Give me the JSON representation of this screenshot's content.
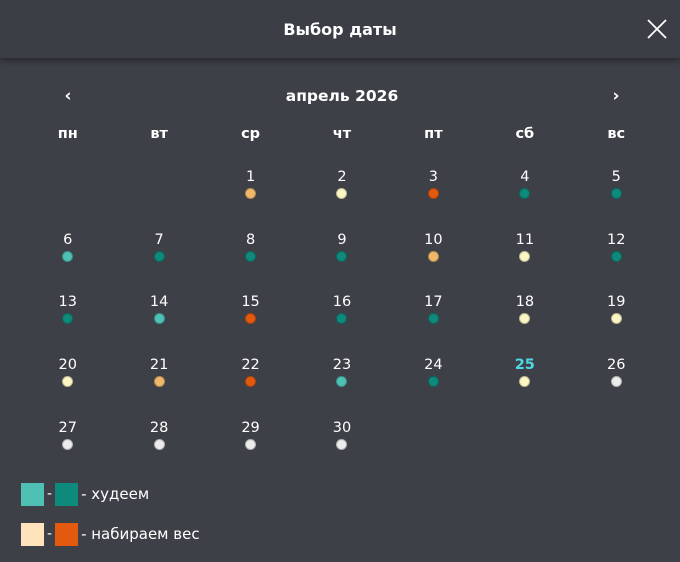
{
  "header": {
    "title": "Выбор даты",
    "close_icon": "close-icon"
  },
  "nav": {
    "prev": "‹",
    "next": "›",
    "month": "апрель 2026"
  },
  "weekdays": [
    "пн",
    "вт",
    "ср",
    "чт",
    "пт",
    "сб",
    "вс"
  ],
  "status_colors": {
    "lose_light": "#4fc0b4",
    "lose_dark": "#0e8a7c",
    "gain_light": "#ffe3bc",
    "gain_dark": "#e35a0f",
    "gain_mid": "#f0b86b",
    "neutral_yellow": "#fbf6c4",
    "none": "#ececec"
  },
  "today": 25,
  "start_offset": 2,
  "days": [
    {
      "d": "1",
      "c": "gain_mid"
    },
    {
      "d": "2",
      "c": "neutral_yellow"
    },
    {
      "d": "3",
      "c": "gain_dark"
    },
    {
      "d": "4",
      "c": "lose_dark"
    },
    {
      "d": "5",
      "c": "lose_dark"
    },
    {
      "d": "6",
      "c": "lose_light"
    },
    {
      "d": "7",
      "c": "lose_dark"
    },
    {
      "d": "8",
      "c": "lose_dark"
    },
    {
      "d": "9",
      "c": "lose_dark"
    },
    {
      "d": "10",
      "c": "gain_mid"
    },
    {
      "d": "11",
      "c": "neutral_yellow"
    },
    {
      "d": "12",
      "c": "lose_dark"
    },
    {
      "d": "13",
      "c": "lose_dark"
    },
    {
      "d": "14",
      "c": "lose_light"
    },
    {
      "d": "15",
      "c": "gain_dark"
    },
    {
      "d": "16",
      "c": "lose_dark"
    },
    {
      "d": "17",
      "c": "lose_dark"
    },
    {
      "d": "18",
      "c": "neutral_yellow"
    },
    {
      "d": "19",
      "c": "neutral_yellow"
    },
    {
      "d": "20",
      "c": "neutral_yellow"
    },
    {
      "d": "21",
      "c": "gain_mid"
    },
    {
      "d": "22",
      "c": "gain_dark"
    },
    {
      "d": "23",
      "c": "lose_light"
    },
    {
      "d": "24",
      "c": "lose_dark"
    },
    {
      "d": "25",
      "c": "neutral_yellow"
    },
    {
      "d": "26",
      "c": "none"
    },
    {
      "d": "27",
      "c": "none"
    },
    {
      "d": "28",
      "c": "none"
    },
    {
      "d": "29",
      "c": "none"
    },
    {
      "d": "30",
      "c": "none"
    }
  ],
  "legend": {
    "lose": {
      "sep": "-",
      "text": "- худеем",
      "color_light": "#4fc0b4",
      "color_dark": "#0e8a7c"
    },
    "gain": {
      "sep": "-",
      "text": "- набираем вес",
      "color_light": "#ffe3bc",
      "color_dark": "#e35a0f"
    }
  }
}
